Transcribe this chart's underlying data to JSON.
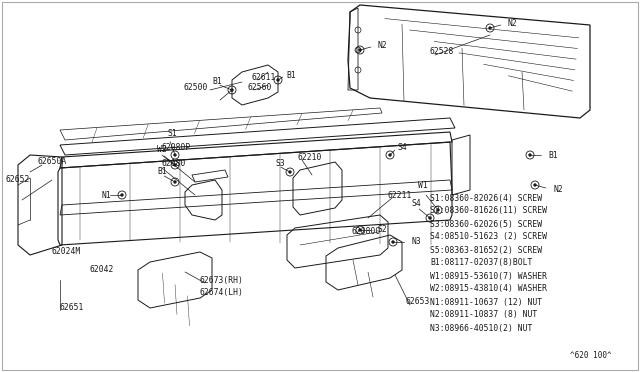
{
  "bg_color": "#ffffff",
  "line_color": "#1a1a1a",
  "text_color": "#1a1a1a",
  "legend_lines": [
    "S1:08360-82026(4) SCREW",
    "S2:08360-81626(11) SCREW",
    "S3:08360-62026(5) SCREW",
    "S4:08510-51623 (2) SCREW",
    "S5:08363-81652(2) SCREW",
    "B1:08117-02037(8)BOLT",
    "W1:08915-53610(7) WASHER",
    "W2:08915-43810(4) WASHER",
    "N1:08911-10637 (12) NUT",
    "N2:08911-10837 (8) NUT",
    "N3:08966-40510(2) NUT"
  ],
  "part_number": "^620 100^",
  "label_fontsize": 5.8,
  "legend_fontsize": 5.8
}
